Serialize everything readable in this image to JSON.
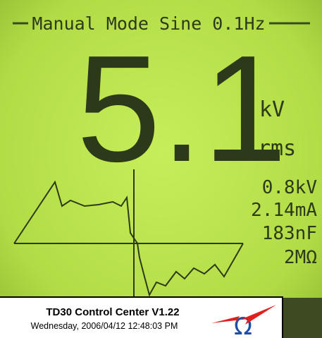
{
  "screen": {
    "title": "Manual Mode Sine 0.1Hz",
    "main_value": "5.1",
    "main_unit": "kV",
    "main_unit_kind": "rms",
    "readings": [
      "0.8kV",
      "2.14mA",
      "183nF",
      "2MΩ"
    ]
  },
  "overlay": {
    "title": "TD30 Control Center V1.22",
    "timestamp": "Wednesday, 2006/04/12 12:48:03 PM",
    "logo_symbol": "Ω"
  }
}
